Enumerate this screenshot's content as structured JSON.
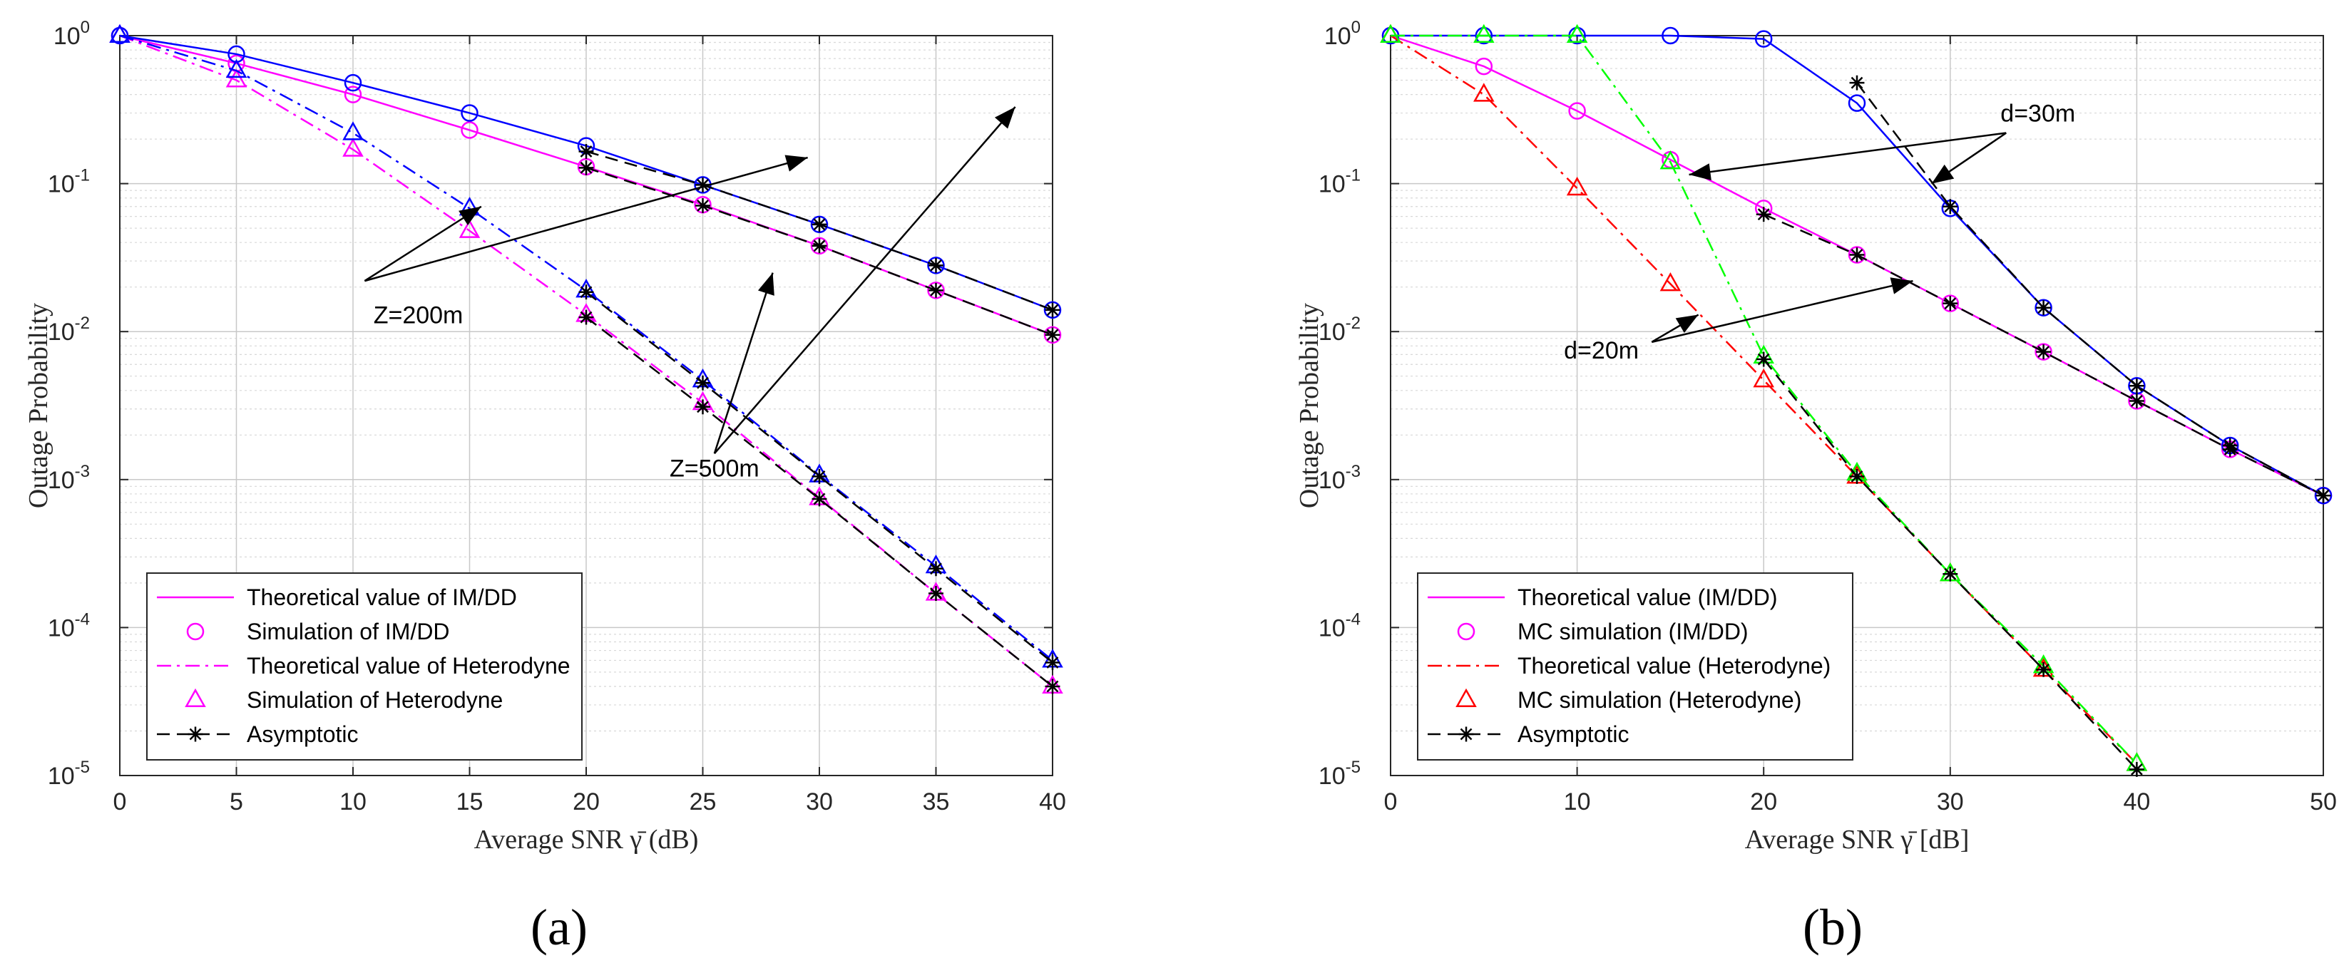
{
  "figure_labels": [
    "(a)",
    "(b)"
  ],
  "chart_data": [
    {
      "type": "line",
      "panel_label": "(a)",
      "xlabel": "Average SNR γ̄ (dB)",
      "ylabel": "Outage Probability",
      "y_scale": "log",
      "xlim": [
        0,
        40
      ],
      "ylim": [
        1e-05,
        1
      ],
      "xticks": [
        "0",
        "5",
        "10",
        "15",
        "20",
        "25",
        "30",
        "35",
        "40"
      ],
      "yticks": [
        "10^0",
        "10^-1",
        "10^-2",
        "10^-3",
        "10^-4",
        "10^-5"
      ],
      "grid": true,
      "legend_position": "bottom-left",
      "legend": [
        {
          "label": "Theoretical value of IM/DD",
          "line": "solid",
          "marker": "none",
          "color": "#ff00ff"
        },
        {
          "label": "Simulation of IM/DD",
          "line": "none",
          "marker": "circle",
          "color": "#ff00ff"
        },
        {
          "label": "Theoretical value of Heterodyne",
          "line": "dashdot",
          "marker": "none",
          "color": "#ff00ff"
        },
        {
          "label": "Simulation of Heterodyne",
          "line": "none",
          "marker": "triangle",
          "color": "#ff00ff"
        },
        {
          "label": "Asymptotic",
          "line": "dashed",
          "marker": "star",
          "color": "#000000"
        }
      ],
      "series": [
        {
          "name": "IM/DD Z=200m",
          "color": "#ff00ff",
          "line": "solid",
          "marker": "circle",
          "x": [
            0,
            5,
            10,
            15,
            20,
            25,
            30,
            35,
            40
          ],
          "values": [
            1.0,
            0.65,
            0.4,
            0.23,
            0.13,
            0.072,
            0.038,
            0.019,
            0.0095
          ]
        },
        {
          "name": "IM/DD Z=500m",
          "color": "#0000ff",
          "line": "solid",
          "marker": "circle",
          "x": [
            0,
            5,
            10,
            15,
            20,
            25,
            30,
            35,
            40
          ],
          "values": [
            1.0,
            0.75,
            0.48,
            0.3,
            0.18,
            0.098,
            0.053,
            0.028,
            0.014
          ]
        },
        {
          "name": "Heterodyne Z=200m",
          "color": "#ff00ff",
          "line": "dashdot",
          "marker": "triangle",
          "x": [
            0,
            5,
            10,
            15,
            20,
            25,
            30,
            35,
            40
          ],
          "values": [
            1.0,
            0.5,
            0.17,
            0.048,
            0.013,
            0.0033,
            0.00075,
            0.00017,
            4e-05
          ]
        },
        {
          "name": "Heterodyne Z=500m",
          "color": "#0000ff",
          "line": "dashdot",
          "marker": "triangle",
          "x": [
            0,
            5,
            10,
            15,
            20,
            25,
            30,
            35,
            40
          ],
          "values": [
            1.0,
            0.58,
            0.22,
            0.068,
            0.019,
            0.0047,
            0.00107,
            0.00026,
            6e-05
          ]
        },
        {
          "name": "Asymptotic IM/DD Z=200m",
          "color": "#000000",
          "line": "dashed",
          "marker": "star",
          "x": [
            20,
            25,
            30,
            35,
            40
          ],
          "values": [
            0.128,
            0.071,
            0.038,
            0.019,
            0.0095
          ]
        },
        {
          "name": "Asymptotic IM/DD Z=500m",
          "color": "#000000",
          "line": "dashed",
          "marker": "star",
          "x": [
            20,
            25,
            30,
            35,
            40
          ],
          "values": [
            0.165,
            0.098,
            0.053,
            0.028,
            0.014
          ]
        },
        {
          "name": "Asymptotic Heterodyne Z=200m",
          "color": "#000000",
          "line": "dashed",
          "marker": "star",
          "x": [
            20,
            25,
            30,
            35,
            40
          ],
          "values": [
            0.0125,
            0.0031,
            0.00074,
            0.00017,
            4e-05
          ]
        },
        {
          "name": "Asymptotic Heterodyne Z=500m",
          "color": "#000000",
          "line": "dashed",
          "marker": "star",
          "x": [
            20,
            25,
            30,
            35,
            40
          ],
          "values": [
            0.0185,
            0.0045,
            0.00105,
            0.00025,
            5.8e-05
          ]
        }
      ],
      "annotations": [
        {
          "text": "Z=200m",
          "text_x": 12.8,
          "text_y": 0.013,
          "arrows": [
            [
              10.5,
              0.022,
              15.5,
              0.07
            ],
            [
              10.5,
              0.022,
              29.5,
              0.15
            ]
          ]
        },
        {
          "text": "Z=500m",
          "text_x": 25.5,
          "text_y": 0.0012,
          "arrows": [
            [
              25.5,
              0.0015,
              28,
              0.025
            ],
            [
              25.5,
              0.0015,
              38.4,
              0.33
            ]
          ]
        }
      ]
    },
    {
      "type": "line",
      "panel_label": "(b)",
      "xlabel": "Average SNR γ̄ [dB]",
      "ylabel": "Outage Probability",
      "y_scale": "log",
      "xlim": [
        0,
        50
      ],
      "ylim": [
        1e-05,
        1
      ],
      "xticks": [
        "0",
        "10",
        "20",
        "30",
        "40",
        "50"
      ],
      "yticks": [
        "10^0",
        "10^-1",
        "10^-2",
        "10^-3",
        "10^-4",
        "10^-5"
      ],
      "grid": true,
      "legend_position": "bottom-left",
      "legend": [
        {
          "label": "Theoretical value (IM/DD)",
          "line": "solid",
          "marker": "none",
          "color": "#ff00ff"
        },
        {
          "label": "MC simulation (IM/DD)",
          "line": "none",
          "marker": "circle",
          "color": "#ff00ff"
        },
        {
          "label": "Theoretical value (Heterodyne)",
          "line": "dashdot",
          "marker": "none",
          "color": "#ff0000"
        },
        {
          "label": "MC simulation (Heterodyne)",
          "line": "none",
          "marker": "triangle",
          "color": "#ff0000"
        },
        {
          "label": "Asymptotic",
          "line": "dashed",
          "marker": "star",
          "color": "#000000"
        }
      ],
      "series": [
        {
          "name": "IM/DD d=20m",
          "color": "#ff00ff",
          "line": "solid",
          "marker": "circle",
          "x": [
            0,
            5,
            10,
            15,
            20,
            25,
            30,
            35,
            40,
            45,
            50
          ],
          "values": [
            1.0,
            0.62,
            0.31,
            0.145,
            0.068,
            0.033,
            0.0155,
            0.0073,
            0.0034,
            0.0016,
            0.00078
          ]
        },
        {
          "name": "IM/DD d=30m",
          "color": "#0000ff",
          "line": "solid",
          "marker": "circle",
          "x": [
            0,
            5,
            10,
            15,
            20,
            25,
            30,
            35,
            40,
            45,
            50
          ],
          "values": [
            1.0,
            1.0,
            1.0,
            1.0,
            0.95,
            0.35,
            0.068,
            0.0145,
            0.0043,
            0.0017,
            0.00078
          ]
        },
        {
          "name": "Heterodyne d=20m",
          "color": "#ff0000",
          "line": "dashdot",
          "marker": "triangle",
          "x": [
            0,
            5,
            10,
            15,
            20,
            25,
            30,
            35,
            40
          ],
          "values": [
            1.0,
            0.4,
            0.093,
            0.021,
            0.0047,
            0.00105,
            0.00023,
            5.2e-05,
            1.2e-05
          ]
        },
        {
          "name": "Heterodyne d=30m",
          "color": "#00ff00",
          "line": "dashdot",
          "marker": "triangle",
          "x": [
            0,
            5,
            10,
            15,
            20,
            25,
            30,
            35,
            40
          ],
          "values": [
            1.0,
            1.0,
            1.0,
            0.14,
            0.0068,
            0.0011,
            0.00023,
            5.5e-05,
            1.2e-05
          ]
        },
        {
          "name": "Asymptotic IM/DD d=20m",
          "color": "#000000",
          "line": "dashed",
          "marker": "star",
          "x": [
            20,
            25,
            30,
            35,
            40,
            45,
            50
          ],
          "values": [
            0.062,
            0.033,
            0.0155,
            0.0073,
            0.0034,
            0.0016,
            0.00078
          ]
        },
        {
          "name": "Asymptotic IM/DD d=30m",
          "color": "#000000",
          "line": "dashed",
          "marker": "star",
          "x": [
            25,
            30,
            35,
            40,
            45,
            50
          ],
          "values": [
            0.48,
            0.07,
            0.0145,
            0.0043,
            0.0017,
            0.00078
          ]
        },
        {
          "name": "Asymptotic Heterodyne",
          "color": "#000000",
          "line": "dashed",
          "marker": "star",
          "x": [
            20,
            25,
            30,
            35,
            40
          ],
          "values": [
            0.0065,
            0.00105,
            0.00023,
            5.2e-05,
            1.1e-05
          ]
        }
      ],
      "annotations": [
        {
          "text": "d=30m",
          "text_x": 34.7,
          "text_y": 0.3,
          "arrows": [
            [
              33,
              0.22,
              16,
              0.115
            ],
            [
              33,
              0.22,
              29,
              0.1
            ]
          ]
        },
        {
          "text": "d=20m",
          "text_x": 11.3,
          "text_y": 0.0075,
          "arrows": [
            [
              14,
              0.0085,
              16.5,
              0.013
            ],
            [
              14,
              0.0085,
              28,
              0.022
            ]
          ]
        }
      ]
    }
  ]
}
